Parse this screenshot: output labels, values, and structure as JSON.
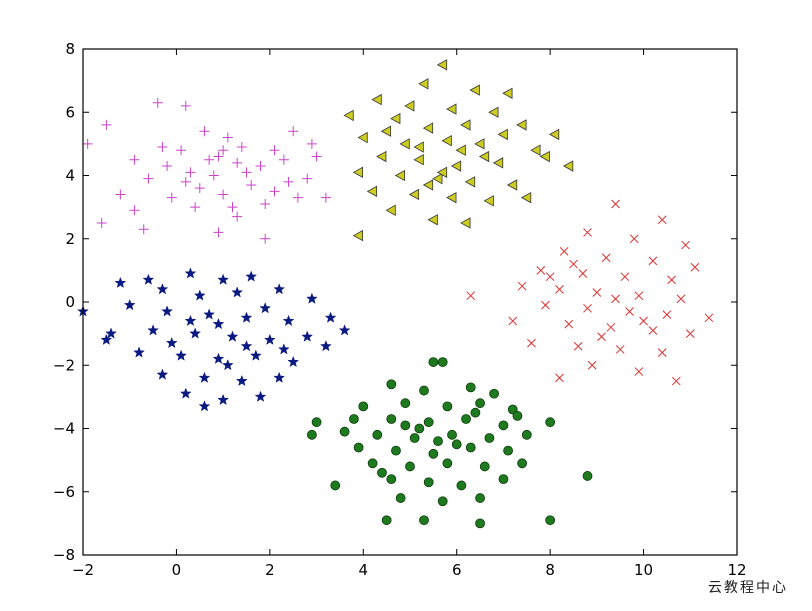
{
  "chart_data": {
    "type": "scatter",
    "title": "",
    "xlabel": "",
    "ylabel": "",
    "xlim": [
      -2,
      12
    ],
    "ylim": [
      -8,
      8
    ],
    "xticks": [
      -2,
      0,
      2,
      4,
      6,
      8,
      10,
      12
    ],
    "yticks": [
      -8,
      -6,
      -4,
      -2,
      0,
      2,
      4,
      6,
      8
    ],
    "xtick_labels": [
      "−2",
      "0",
      "2",
      "4",
      "6",
      "8",
      "10",
      "12"
    ],
    "ytick_labels": [
      "−8",
      "−6",
      "−4",
      "−2",
      "0",
      "2",
      "4",
      "6",
      "8"
    ],
    "grid": false,
    "series": [
      {
        "color": "#cc44cc",
        "marker": "plus",
        "points": [
          [
            -0.4,
            6.3
          ],
          [
            0.2,
            6.2
          ],
          [
            -1.5,
            5.6
          ],
          [
            0.6,
            5.4
          ],
          [
            1.1,
            5.2
          ],
          [
            2.5,
            5.4
          ],
          [
            1.4,
            4.9
          ],
          [
            0.9,
            4.6
          ],
          [
            0.1,
            4.8
          ],
          [
            -0.9,
            4.5
          ],
          [
            -0.2,
            4.3
          ],
          [
            0.3,
            4.1
          ],
          [
            0.8,
            4.0
          ],
          [
            1.3,
            4.4
          ],
          [
            1.8,
            4.3
          ],
          [
            2.3,
            4.5
          ],
          [
            3.0,
            4.6
          ],
          [
            2.8,
            3.9
          ],
          [
            0.5,
            3.6
          ],
          [
            1.0,
            3.4
          ],
          [
            1.6,
            3.7
          ],
          [
            2.1,
            3.5
          ],
          [
            2.6,
            3.3
          ],
          [
            -0.6,
            3.9
          ],
          [
            -1.2,
            3.4
          ],
          [
            -0.1,
            3.3
          ],
          [
            0.4,
            3.0
          ],
          [
            1.2,
            3.0
          ],
          [
            1.9,
            3.1
          ],
          [
            -0.9,
            2.9
          ],
          [
            0.9,
            2.2
          ],
          [
            1.9,
            2.0
          ],
          [
            -1.6,
            2.5
          ],
          [
            0.7,
            4.5
          ],
          [
            1.5,
            4.1
          ],
          [
            -0.3,
            4.9
          ],
          [
            2.1,
            4.8
          ],
          [
            1.0,
            4.8
          ],
          [
            0.2,
            3.8
          ],
          [
            2.4,
            3.8
          ],
          [
            -1.9,
            5.0
          ],
          [
            3.2,
            3.3
          ],
          [
            -0.7,
            2.3
          ],
          [
            1.3,
            2.7
          ],
          [
            2.9,
            5.0
          ]
        ]
      },
      {
        "color": "#cccc22",
        "marker": "triangle-left",
        "points": [
          [
            5.7,
            7.5
          ],
          [
            5.3,
            6.9
          ],
          [
            6.4,
            6.7
          ],
          [
            7.1,
            6.6
          ],
          [
            4.3,
            6.4
          ],
          [
            5.0,
            6.2
          ],
          [
            5.9,
            6.1
          ],
          [
            6.8,
            6.0
          ],
          [
            3.7,
            5.9
          ],
          [
            4.7,
            5.8
          ],
          [
            5.4,
            5.5
          ],
          [
            6.2,
            5.6
          ],
          [
            7.4,
            5.6
          ],
          [
            8.1,
            5.3
          ],
          [
            4.0,
            5.2
          ],
          [
            4.9,
            5.0
          ],
          [
            5.8,
            5.1
          ],
          [
            6.5,
            5.0
          ],
          [
            7.7,
            4.8
          ],
          [
            4.4,
            4.6
          ],
          [
            5.2,
            4.5
          ],
          [
            6.0,
            4.3
          ],
          [
            6.9,
            4.4
          ],
          [
            7.9,
            4.6
          ],
          [
            8.4,
            4.3
          ],
          [
            3.9,
            4.1
          ],
          [
            4.8,
            4.0
          ],
          [
            5.6,
            3.9
          ],
          [
            6.3,
            3.8
          ],
          [
            7.2,
            3.7
          ],
          [
            4.2,
            3.5
          ],
          [
            5.1,
            3.4
          ],
          [
            5.9,
            3.3
          ],
          [
            6.7,
            3.2
          ],
          [
            7.5,
            3.3
          ],
          [
            4.6,
            2.9
          ],
          [
            5.5,
            2.6
          ],
          [
            6.2,
            2.5
          ],
          [
            3.9,
            2.1
          ],
          [
            5.2,
            4.9
          ],
          [
            6.6,
            4.6
          ],
          [
            5.7,
            4.1
          ],
          [
            4.5,
            5.4
          ],
          [
            7.0,
            5.3
          ],
          [
            6.1,
            4.8
          ],
          [
            5.4,
            3.7
          ]
        ]
      },
      {
        "color": "#dd3333",
        "marker": "x",
        "points": [
          [
            9.4,
            3.1
          ],
          [
            10.4,
            2.6
          ],
          [
            8.8,
            2.2
          ],
          [
            9.8,
            2.0
          ],
          [
            10.9,
            1.8
          ],
          [
            8.3,
            1.6
          ],
          [
            9.2,
            1.4
          ],
          [
            10.2,
            1.3
          ],
          [
            11.1,
            1.1
          ],
          [
            7.8,
            1.0
          ],
          [
            8.7,
            0.9
          ],
          [
            9.6,
            0.8
          ],
          [
            10.6,
            0.7
          ],
          [
            7.4,
            0.5
          ],
          [
            8.2,
            0.4
          ],
          [
            9.0,
            0.3
          ],
          [
            9.9,
            0.2
          ],
          [
            10.8,
            0.1
          ],
          [
            6.3,
            0.2
          ],
          [
            7.9,
            -0.1
          ],
          [
            8.8,
            -0.2
          ],
          [
            9.7,
            -0.3
          ],
          [
            10.5,
            -0.4
          ],
          [
            11.4,
            -0.5
          ],
          [
            7.2,
            -0.6
          ],
          [
            8.4,
            -0.7
          ],
          [
            9.3,
            -0.8
          ],
          [
            10.2,
            -0.9
          ],
          [
            11.0,
            -1.0
          ],
          [
            7.6,
            -1.3
          ],
          [
            8.6,
            -1.4
          ],
          [
            9.5,
            -1.5
          ],
          [
            10.4,
            -1.6
          ],
          [
            8.9,
            -2.0
          ],
          [
            9.9,
            -2.2
          ],
          [
            8.2,
            -2.4
          ],
          [
            10.7,
            -2.5
          ],
          [
            9.4,
            0.1
          ],
          [
            8.5,
            1.2
          ],
          [
            10.0,
            -0.6
          ],
          [
            9.1,
            -1.1
          ],
          [
            8.0,
            0.8
          ]
        ]
      },
      {
        "color": "#0a1a80",
        "marker": "star",
        "points": [
          [
            -2.0,
            -0.3
          ],
          [
            -1.2,
            0.6
          ],
          [
            -0.6,
            0.7
          ],
          [
            0.3,
            0.9
          ],
          [
            1.0,
            0.7
          ],
          [
            1.6,
            0.8
          ],
          [
            -0.3,
            0.4
          ],
          [
            0.5,
            0.2
          ],
          [
            1.3,
            0.3
          ],
          [
            2.2,
            0.4
          ],
          [
            2.9,
            0.1
          ],
          [
            -1.0,
            -0.1
          ],
          [
            -0.2,
            -0.3
          ],
          [
            0.7,
            -0.4
          ],
          [
            1.5,
            -0.5
          ],
          [
            2.4,
            -0.6
          ],
          [
            3.3,
            -0.5
          ],
          [
            -1.4,
            -1.0
          ],
          [
            -0.5,
            -0.9
          ],
          [
            0.4,
            -1.0
          ],
          [
            1.2,
            -1.1
          ],
          [
            2.0,
            -1.2
          ],
          [
            2.8,
            -1.1
          ],
          [
            3.6,
            -0.9
          ],
          [
            -0.8,
            -1.6
          ],
          [
            0.1,
            -1.7
          ],
          [
            0.9,
            -1.8
          ],
          [
            1.7,
            -1.7
          ],
          [
            2.5,
            -1.9
          ],
          [
            -0.3,
            -2.3
          ],
          [
            0.6,
            -2.4
          ],
          [
            1.4,
            -2.5
          ],
          [
            2.2,
            -2.4
          ],
          [
            0.2,
            -2.9
          ],
          [
            1.0,
            -3.1
          ],
          [
            1.8,
            -3.0
          ],
          [
            0.9,
            -0.7
          ],
          [
            1.9,
            -0.2
          ],
          [
            -0.1,
            -1.3
          ],
          [
            1.5,
            -1.4
          ],
          [
            0.3,
            -0.6
          ],
          [
            2.3,
            -1.5
          ],
          [
            1.1,
            -2.0
          ],
          [
            0.6,
            -3.3
          ],
          [
            -1.5,
            -1.2
          ],
          [
            3.2,
            -1.4
          ]
        ]
      },
      {
        "color": "#1f7a1f",
        "marker": "circle",
        "points": [
          [
            5.5,
            -1.9
          ],
          [
            5.7,
            -1.9
          ],
          [
            4.6,
            -2.6
          ],
          [
            5.3,
            -2.8
          ],
          [
            6.3,
            -2.7
          ],
          [
            6.8,
            -2.9
          ],
          [
            4.0,
            -3.3
          ],
          [
            4.9,
            -3.2
          ],
          [
            5.8,
            -3.3
          ],
          [
            6.5,
            -3.2
          ],
          [
            7.2,
            -3.4
          ],
          [
            3.0,
            -3.8
          ],
          [
            3.8,
            -3.7
          ],
          [
            4.6,
            -3.7
          ],
          [
            5.4,
            -3.8
          ],
          [
            6.2,
            -3.7
          ],
          [
            7.0,
            -3.9
          ],
          [
            8.0,
            -3.8
          ],
          [
            2.9,
            -4.2
          ],
          [
            3.6,
            -4.1
          ],
          [
            4.3,
            -4.2
          ],
          [
            5.1,
            -4.3
          ],
          [
            5.9,
            -4.2
          ],
          [
            6.7,
            -4.3
          ],
          [
            7.5,
            -4.2
          ],
          [
            3.9,
            -4.6
          ],
          [
            4.7,
            -4.7
          ],
          [
            5.5,
            -4.8
          ],
          [
            6.3,
            -4.6
          ],
          [
            7.1,
            -4.7
          ],
          [
            4.2,
            -5.1
          ],
          [
            5.0,
            -5.2
          ],
          [
            5.8,
            -5.1
          ],
          [
            6.6,
            -5.2
          ],
          [
            7.4,
            -5.1
          ],
          [
            3.4,
            -5.8
          ],
          [
            4.6,
            -5.6
          ],
          [
            5.4,
            -5.7
          ],
          [
            6.1,
            -5.8
          ],
          [
            7.0,
            -5.6
          ],
          [
            8.8,
            -5.5
          ],
          [
            4.8,
            -6.2
          ],
          [
            5.7,
            -6.3
          ],
          [
            6.5,
            -6.2
          ],
          [
            4.5,
            -6.9
          ],
          [
            5.3,
            -6.9
          ],
          [
            6.5,
            -7.0
          ],
          [
            8.0,
            -6.9
          ],
          [
            5.2,
            -4.0
          ],
          [
            6.0,
            -4.5
          ],
          [
            4.9,
            -3.9
          ],
          [
            5.6,
            -4.4
          ],
          [
            6.4,
            -3.5
          ],
          [
            7.3,
            -3.6
          ],
          [
            4.4,
            -5.4
          ]
        ]
      }
    ]
  },
  "watermark": {
    "text": "云教程中心"
  }
}
